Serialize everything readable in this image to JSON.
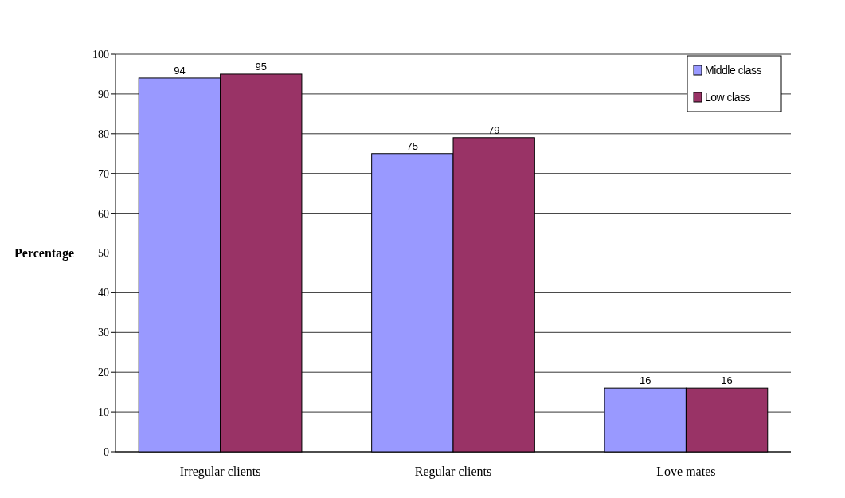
{
  "chart_data": {
    "type": "bar",
    "ylabel": "Percentage",
    "categories": [
      "Irregular clients",
      "Regular clients",
      "Love mates"
    ],
    "series": [
      {
        "name": "Middle class",
        "color": "#9999ff",
        "values": [
          94,
          75,
          16
        ]
      },
      {
        "name": "Low class",
        "color": "#993366",
        "values": [
          95,
          79,
          16
        ]
      }
    ],
    "ylim": [
      0,
      100
    ],
    "yticks": [
      0,
      10,
      20,
      30,
      40,
      50,
      60,
      70,
      80,
      90,
      100
    ],
    "grid": "y",
    "legend": "top right",
    "data_labels": true
  }
}
